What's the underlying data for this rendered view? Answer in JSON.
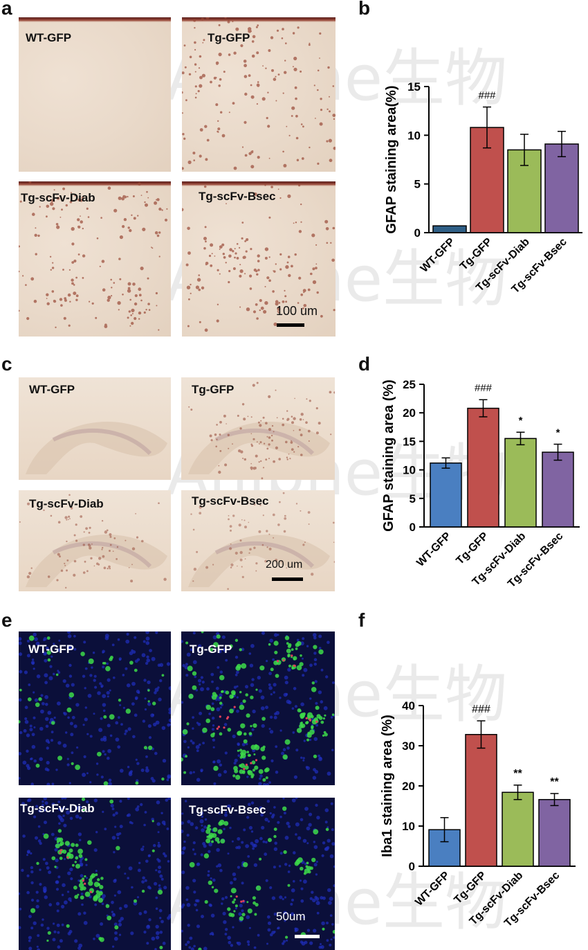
{
  "panels": {
    "a": "a",
    "b": "b",
    "c": "c",
    "d": "d",
    "e": "e",
    "f": "f"
  },
  "watermark": "Aniphe生物",
  "micrographs": {
    "a": {
      "labels": [
        "WT-GFP",
        "Tg-GFP",
        "Tg-scFv-Diab",
        "Tg-scFv-Bsec"
      ],
      "scale": "100 um"
    },
    "c": {
      "labels": [
        "WT-GFP",
        "Tg-GFP",
        "Tg-scFv-Diab",
        "Tg-scFv-Bsec"
      ],
      "scale": "200 um"
    },
    "e": {
      "labels": [
        "WT-GFP",
        "Tg-GFP",
        "Tg-scFv-Diab",
        "Tg-scFv-Bsec"
      ],
      "scale": "50um"
    }
  },
  "colors": {
    "WT-GFP": "#4a7fc1",
    "WT-GFP-b": "#2f5f86",
    "Tg-GFP": "#c0504d",
    "Tg-scFv-Diab": "#9bbb59",
    "Tg-scFv-Bsec": "#8064a2"
  },
  "chart_data": [
    {
      "panel": "b",
      "type": "bar",
      "categories": [
        "WT-GFP",
        "Tg-GFP",
        "Tg-scFv-Diab",
        "Tg-scFv-Bsec"
      ],
      "values": [
        0.7,
        10.8,
        8.5,
        9.1
      ],
      "errors": [
        0,
        2.1,
        1.6,
        1.3
      ],
      "annotations": [
        "",
        "###",
        "",
        ""
      ],
      "ylabel": "GFAP staining area(%)",
      "ylim": [
        0,
        15
      ],
      "yticks": [
        0,
        5,
        10,
        15
      ]
    },
    {
      "panel": "d",
      "type": "bar",
      "categories": [
        "WT-GFP",
        "Tg-GFP",
        "Tg-scFv-Diab",
        "Tg-scFv-Bsec"
      ],
      "values": [
        11.2,
        20.8,
        15.5,
        13.1
      ],
      "errors": [
        0.9,
        1.5,
        1.1,
        1.4
      ],
      "annotations": [
        "",
        "###",
        "*",
        "*"
      ],
      "ylabel": "GFAP staining area (%)",
      "ylim": [
        0,
        25
      ],
      "yticks": [
        0,
        5,
        10,
        15,
        20,
        25
      ]
    },
    {
      "panel": "f",
      "type": "bar",
      "categories": [
        "WT-GFP",
        "Tg-GFP",
        "Tg-scFv-Diab",
        "Tg-scFv-Bsec"
      ],
      "values": [
        9.1,
        32.8,
        18.4,
        16.6
      ],
      "errors": [
        3.0,
        3.4,
        1.8,
        1.5
      ],
      "annotations": [
        "",
        "###",
        "**",
        "**"
      ],
      "ylabel": "Iba1 staining area (%)",
      "ylim": [
        0,
        40
      ],
      "yticks": [
        0,
        10,
        20,
        30,
        40
      ]
    }
  ]
}
